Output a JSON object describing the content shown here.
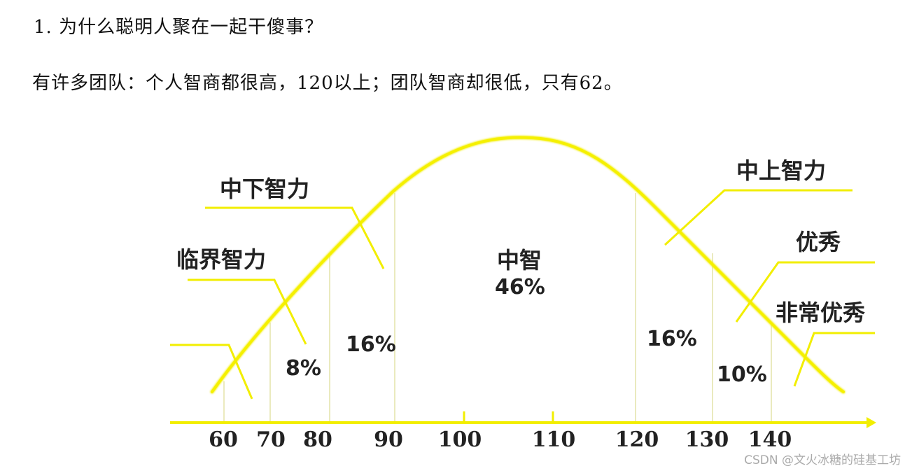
{
  "heading": "1. 为什么聪明人聚在一起干傻事？",
  "paragraph": "有许多团队：个人智商都很高，120以上；团队智商却很低，只有62。",
  "diagram": {
    "curve_color": "#f2ee00",
    "axis_ticks": [
      "60",
      "70",
      "80",
      "90",
      "100",
      "110",
      "120",
      "130",
      "140"
    ],
    "categories": {
      "borderline": "临界智力",
      "lower_middle": "中下智力",
      "middle": "中智",
      "upper_middle": "中上智力",
      "superior": "优秀",
      "very_superior": "非常优秀"
    },
    "percentages": {
      "borderline": "8%",
      "lower_middle": "16%",
      "middle": "46%",
      "upper_middle": "16%",
      "superior": "10%"
    }
  },
  "watermark": "CSDN @文火冰糖的硅基工坊"
}
